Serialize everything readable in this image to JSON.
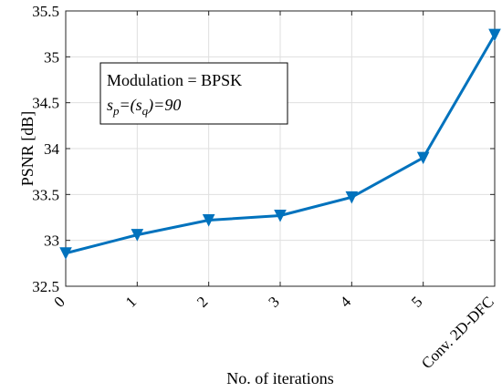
{
  "chart_data": {
    "type": "line",
    "title": "",
    "xlabel": "No. of iterations",
    "ylabel": "PSNR [dB]",
    "categories": [
      "0",
      "1",
      "2",
      "3",
      "4",
      "5",
      "Conv. 2D-DFC"
    ],
    "series": [
      {
        "values": [
          32.86,
          33.06,
          33.22,
          33.27,
          33.47,
          33.9,
          35.24
        ],
        "color": "#0072BD",
        "marker": "triangle-down"
      }
    ],
    "ylim": [
      32.5,
      35.5
    ],
    "yticks": [
      "32.5",
      "33",
      "33.5",
      "34",
      "34.5",
      "35",
      "35.5"
    ],
    "grid": true,
    "annotation": {
      "line1": "Modulation = BPSK",
      "line2": {
        "s": "s",
        "p": "p",
        "eq_open": "=(",
        "s2": "s",
        "q": "q",
        "close": ")=90"
      }
    }
  }
}
